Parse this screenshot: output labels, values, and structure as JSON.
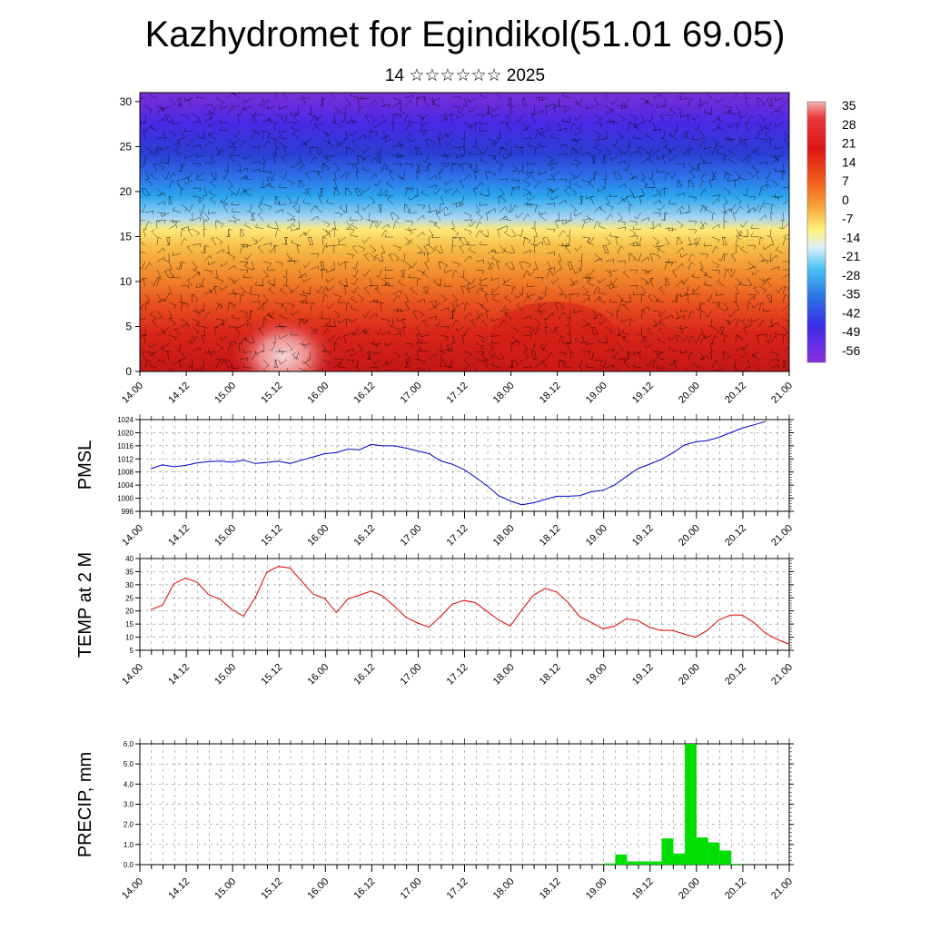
{
  "page": {
    "title": "Kazhydromet for Egindikol(51.01 69.05)",
    "subtitle": "14 ☆☆☆☆☆☆ 2025"
  },
  "colors": {
    "pressure_line": "#0000cc",
    "temperature_line": "#dd0000",
    "precip_bar": "#00e000",
    "grid": "#000000"
  },
  "chart_data": [
    {
      "id": "cross-section",
      "type": "heatmap",
      "description_fields": "temperature by height with wind barbs",
      "x_tick_labels": [
        "14.00",
        "14.12",
        "15.00",
        "15.12",
        "16.00",
        "16.12",
        "17.00",
        "17.12",
        "18.00",
        "18.12",
        "19.00",
        "19.12",
        "20.00",
        "20.12",
        "21.00"
      ],
      "y_ticks": [
        0,
        5,
        10,
        15,
        20,
        25,
        30
      ],
      "ylim": [
        0,
        31
      ],
      "colorbar_labels": [
        "35",
        "28",
        "21",
        "14",
        "7",
        "0",
        "-7",
        "-14",
        "-21",
        "-28",
        "-35",
        "-42",
        "-49",
        "-56"
      ],
      "colorbar_values": [
        35,
        28,
        21,
        14,
        7,
        0,
        -7,
        -14,
        -21,
        -28,
        -35,
        -42,
        -49,
        -56
      ],
      "zlim": [
        -63,
        42
      ]
    },
    {
      "id": "pmsl",
      "type": "line",
      "ylabel": "PMSL",
      "x_tick_labels": [
        "14.00",
        "14.12",
        "15.00",
        "15.12",
        "16.00",
        "16.12",
        "17.00",
        "17.12",
        "18.00",
        "18.12",
        "19.00",
        "19.12",
        "20.00",
        "20.12",
        "21.00"
      ],
      "y_ticks": [
        996,
        1000,
        1004,
        1008,
        1012,
        1016,
        1020,
        1024
      ],
      "ylim": [
        996,
        1024
      ],
      "x_step_hours": 3,
      "values": [
        1009.0,
        1010.2,
        1009.6,
        1010.0,
        1010.8,
        1011.2,
        1011.3,
        1011.0,
        1011.6,
        1010.6,
        1010.9,
        1011.3,
        1010.6,
        1011.6,
        1012.6,
        1013.6,
        1013.9,
        1015.0,
        1014.8,
        1016.4,
        1016.0,
        1016.0,
        1015.3,
        1014.4,
        1013.6,
        1011.4,
        1010.4,
        1008.8,
        1006.4,
        1003.8,
        1000.8,
        999.2,
        998.0,
        998.6,
        999.6,
        1000.6,
        1000.6,
        1000.8,
        1002.0,
        1002.4,
        1004.0,
        1006.6,
        1009.0,
        1010.4,
        1011.8,
        1013.8,
        1016.2,
        1017.2,
        1017.6,
        1018.6,
        1020.0,
        1021.4,
        1022.4,
        1023.4
      ]
    },
    {
      "id": "temp2m",
      "type": "line",
      "ylabel": "TEMP at 2 M",
      "x_tick_labels": [
        "14.00",
        "14.12",
        "15.00",
        "15.12",
        "16.00",
        "16.12",
        "17.00",
        "17.12",
        "18.00",
        "18.12",
        "19.00",
        "19.12",
        "20.00",
        "20.12",
        "21.00"
      ],
      "y_ticks": [
        5,
        10,
        15,
        20,
        25,
        30,
        35,
        40
      ],
      "ylim": [
        5,
        40
      ],
      "x_step_hours": 3,
      "values": [
        20.5,
        22.2,
        30.4,
        32.6,
        31.0,
        26.2,
        24.4,
        20.6,
        18.0,
        25.0,
        34.8,
        37.0,
        36.4,
        31.4,
        26.4,
        24.8,
        19.4,
        24.6,
        26.0,
        27.6,
        25.8,
        21.8,
        17.6,
        15.4,
        13.8,
        18.0,
        22.6,
        24.0,
        23.2,
        19.8,
        16.6,
        14.2,
        20.4,
        26.0,
        28.6,
        27.2,
        23.2,
        17.8,
        15.6,
        13.2,
        14.2,
        17.0,
        16.4,
        13.8,
        12.6,
        12.6,
        11.2,
        10.0,
        12.6,
        16.6,
        18.4,
        18.4,
        15.6,
        11.6,
        9.2,
        7.4
      ]
    },
    {
      "id": "precip",
      "type": "bar",
      "ylabel": "PRECIP, mm",
      "x_tick_labels": [
        "14.00",
        "14.12",
        "15.00",
        "15.12",
        "16.00",
        "16.12",
        "17.00",
        "17.12",
        "18.00",
        "18.12",
        "19.00",
        "19.12",
        "20.00",
        "20.12",
        "21.00"
      ],
      "y_tick_labels": [
        "0.0",
        "1.0",
        "2.0",
        "3.0",
        "4.0",
        "5.0",
        "6.0"
      ],
      "ylim": [
        0,
        6
      ],
      "bar_step_hours": 3,
      "first_bar_hour": 0,
      "values": [
        0,
        0,
        0,
        0,
        0,
        0,
        0,
        0,
        0,
        0,
        0,
        0,
        0,
        0,
        0,
        0,
        0,
        0,
        0,
        0,
        0,
        0,
        0,
        0,
        0,
        0,
        0,
        0,
        0,
        0,
        0,
        0,
        0,
        0,
        0,
        0,
        0,
        0,
        0,
        0,
        0.06,
        0.5,
        0.16,
        0.16,
        0.16,
        1.3,
        0.55,
        6.0,
        1.35,
        1.1,
        0.7,
        0.04,
        0,
        0,
        0,
        0
      ]
    }
  ]
}
